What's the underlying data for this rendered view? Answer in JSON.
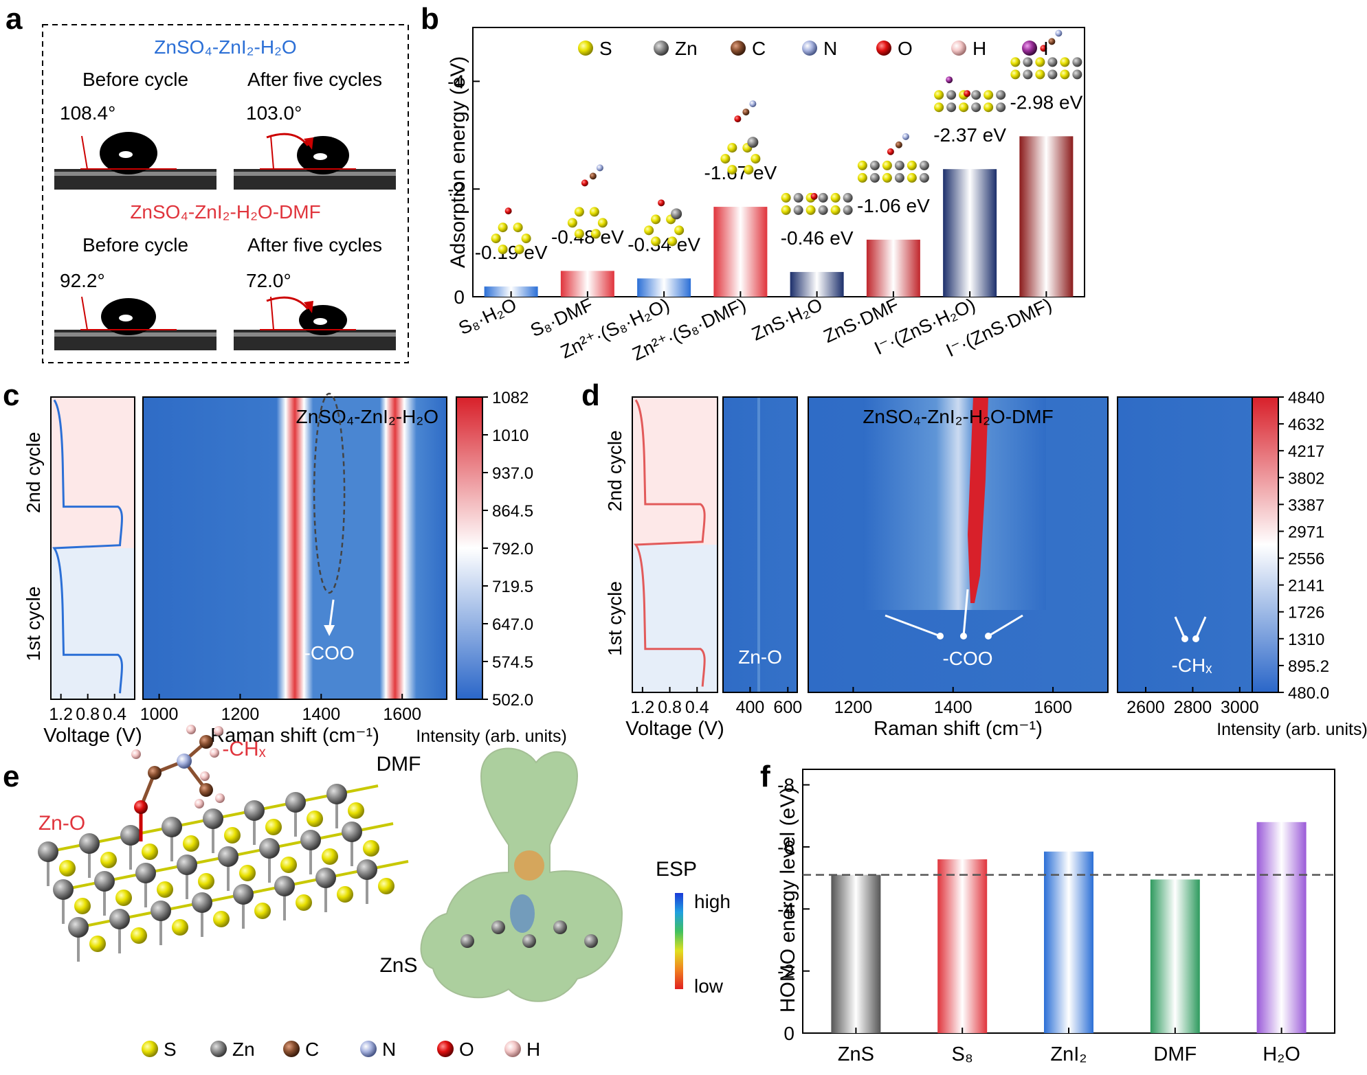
{
  "panels": {
    "a": "a",
    "b": "b",
    "c": "c",
    "d": "d",
    "e": "e",
    "f": "f"
  },
  "colors": {
    "blue": "#2b6fd6",
    "red": "#e0343c",
    "darkred": "#8b1b1b",
    "navy": "#1c2f6b",
    "heat_low": "#2a66c8",
    "heat_mid": "#ffffff",
    "heat_high": "#d8202a"
  },
  "panel_a": {
    "title1": "ZnSO₄-ZnI₂-H₂O",
    "title2": "ZnSO₄-ZnI₂-H₂O-DMF",
    "before": "Before cycle",
    "after": "After five cycles",
    "angles": [
      "108.4°",
      "103.0°",
      "92.2°",
      "72.0°"
    ]
  },
  "legend_atoms": [
    {
      "label": "S",
      "color": "#e8e000"
    },
    {
      "label": "Zn",
      "color": "#8c8c8c"
    },
    {
      "label": "C",
      "color": "#8a5030"
    },
    {
      "label": "N",
      "color": "#a8b4e0"
    },
    {
      "label": "O",
      "color": "#e01010"
    },
    {
      "label": "H",
      "color": "#f4c8c8"
    },
    {
      "label": "I",
      "color": "#9b2f9b"
    }
  ],
  "chart_data": [
    {
      "panel": "b",
      "type": "bar",
      "ylabel": "Adsorption energy (eV)",
      "ylim": [
        0,
        -5
      ],
      "yticks": [
        "0",
        "-2",
        "-4"
      ],
      "categories": [
        "S₈·H₂O",
        "S₈·DMF",
        "Zn²⁺·(S₈·H₂O)",
        "Zn²⁺·(S₈·DMF)",
        "ZnS·H₂O",
        "ZnS·DMF",
        "I⁻·(ZnS·H₂O)",
        "I⁻·(ZnS·DMF)"
      ],
      "values": [
        -0.19,
        -0.48,
        -0.34,
        -1.67,
        -0.46,
        -1.06,
        -2.37,
        -2.98
      ],
      "labels": [
        "-0.19 eV",
        "-0.48 eV",
        "-0.34 eV",
        "-1.67 eV",
        "-0.46 eV",
        "-1.06 eV",
        "-2.37 eV",
        "-2.98 eV"
      ],
      "bar_colors": [
        "#2b6fd6",
        "#e0343c",
        "#2b6fd6",
        "#e0343c",
        "#1c2f6b",
        "#c0262c",
        "#1c2f6b",
        "#8b1b1b"
      ]
    },
    {
      "panel": "c",
      "type": "heatmap",
      "title": "ZnSO₄-ZnI₂-H₂O",
      "xlabel": "Raman shift (cm⁻¹)",
      "xticks": [
        "1000",
        "1200",
        "1400",
        "1600"
      ],
      "xlim": [
        960,
        1710
      ],
      "peaks": [
        1340,
        1600
      ],
      "annotation": "-COO",
      "voltage_label": "Voltage (V)",
      "voltage_ticks": [
        "1.2",
        "0.8",
        "0.4"
      ],
      "cycles": [
        "2nd cycle",
        "1st cycle"
      ],
      "colorbar_label": "Intensity (arb. units)",
      "colorbar_ticks": [
        "1082",
        "1010",
        "937.0",
        "864.5",
        "792.0",
        "719.5",
        "647.0",
        "574.5",
        "502.0"
      ]
    },
    {
      "panel": "d",
      "type": "heatmap",
      "title": "ZnSO₄-ZnI₂-H₂O-DMF",
      "xlabel": "Raman shift (cm⁻¹)",
      "xticks_1": [
        "400",
        "600"
      ],
      "xticks_2": [
        "1200",
        "1400",
        "1600"
      ],
      "xticks_3": [
        "2600",
        "2800",
        "3000"
      ],
      "annotations": [
        "Zn-O",
        "-COO",
        "-CHₓ"
      ],
      "voltage_label": "Voltage (V)",
      "voltage_ticks": [
        "1.2",
        "0.8",
        "0.4"
      ],
      "cycles": [
        "2nd cycle",
        "1st cycle"
      ],
      "colorbar_label": "Intensity (arb. units)",
      "colorbar_ticks": [
        "4840",
        "4632",
        "4217",
        "3802",
        "3387",
        "2971",
        "2556",
        "2141",
        "1726",
        "1310",
        "895.2",
        "480.0"
      ]
    },
    {
      "panel": "f",
      "type": "bar",
      "ylabel": "HOMO energy level (eV)",
      "ylim": [
        0,
        -8.5
      ],
      "yticks": [
        "0",
        "-2",
        "-4",
        "-6",
        "-8"
      ],
      "categories": [
        "ZnS",
        "S₈",
        "ZnI₂",
        "DMF",
        "H₂O"
      ],
      "values": [
        -5.1,
        -5.6,
        -5.85,
        -4.95,
        -6.8
      ],
      "reference_line": -5.1,
      "bar_colors": [
        "#555555",
        "#e0343c",
        "#2b6fd6",
        "#2e9a5e",
        "#9a5ad8"
      ]
    }
  ],
  "panel_e": {
    "labels": {
      "zno": "Zn-O",
      "chx": "-CHₓ",
      "dmf": "DMF",
      "zns": "ZnS",
      "esp": "ESP",
      "high": "high",
      "low": "low"
    },
    "legend": [
      {
        "label": "S",
        "color": "#e8e000"
      },
      {
        "label": "Zn",
        "color": "#8c8c8c"
      },
      {
        "label": "C",
        "color": "#8a5030"
      },
      {
        "label": "N",
        "color": "#a8b4e0"
      },
      {
        "label": "O",
        "color": "#e01010"
      },
      {
        "label": "H",
        "color": "#f4c8c8"
      }
    ]
  }
}
